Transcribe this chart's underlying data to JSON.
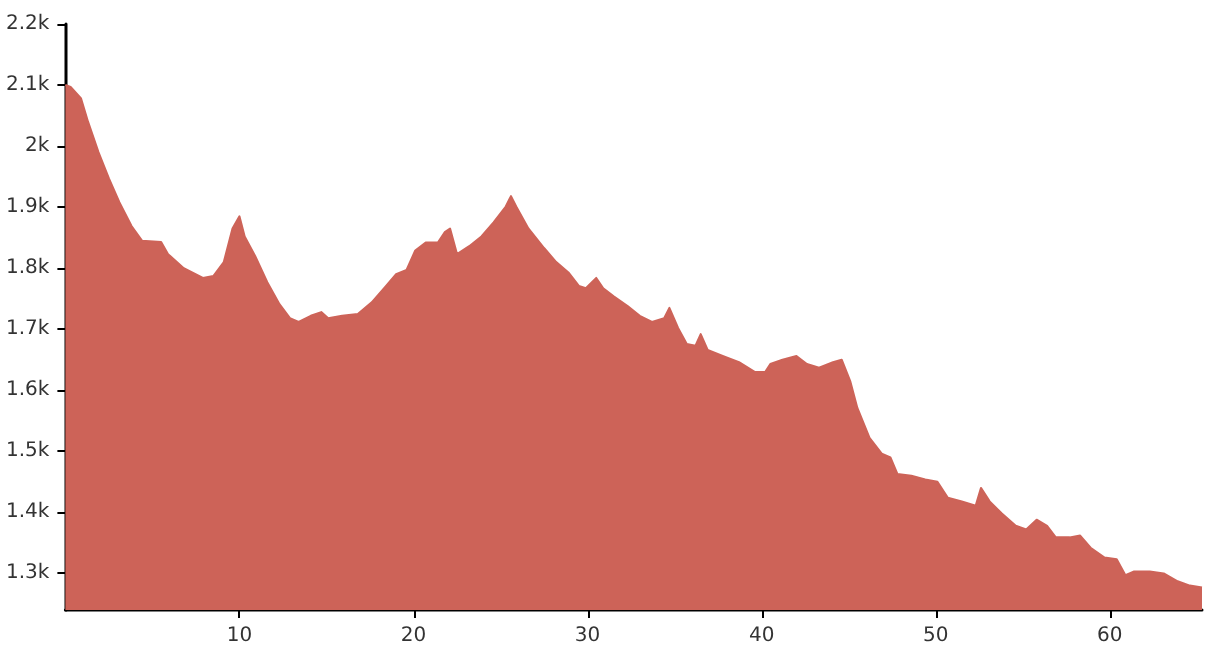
{
  "chart_data": {
    "type": "area",
    "xlim": [
      0,
      65.3
    ],
    "ylim": [
      1240,
      2200
    ],
    "xticks": [
      10,
      20,
      30,
      40,
      50,
      60
    ],
    "yticks": [
      {
        "value": 1300,
        "label": "1.3k"
      },
      {
        "value": 1400,
        "label": "1.4k"
      },
      {
        "value": 1500,
        "label": "1.5k"
      },
      {
        "value": 1600,
        "label": "1.6k"
      },
      {
        "value": 1700,
        "label": "1.7k"
      },
      {
        "value": 1800,
        "label": "1.8k"
      },
      {
        "value": 1900,
        "label": "1.9k"
      },
      {
        "value": 2000,
        "label": "2k"
      },
      {
        "value": 2100,
        "label": "2.1k"
      },
      {
        "value": 2200,
        "label": "2.2k"
      }
    ],
    "grid": false,
    "marker": "none",
    "series": [
      {
        "color": "#cd6358",
        "x": [
          0,
          0.3,
          0.9,
          1.3,
          1.9,
          2.5,
          3.1,
          3.8,
          4.4,
          5.5,
          5.9,
          6.8,
          7.9,
          8.5,
          9.1,
          9.6,
          10,
          10.3,
          10.9,
          11.6,
          12.3,
          12.9,
          13.4,
          14.1,
          14.7,
          15.1,
          15.9,
          16.8,
          17.6,
          18.4,
          19,
          19.6,
          20.1,
          20.7,
          21.4,
          21.8,
          22.1,
          22.5,
          23.2,
          23.9,
          24.6,
          25.3,
          25.6,
          25.9,
          26.6,
          27.5,
          28.2,
          28.9,
          29.5,
          29.9,
          30.5,
          30.9,
          31.5,
          32.3,
          33,
          33.7,
          34.4,
          34.7,
          35.2,
          35.7,
          36.2,
          36.5,
          36.9,
          37.8,
          38.7,
          39.6,
          40.2,
          40.5,
          41.2,
          42,
          42.6,
          43.3,
          44.1,
          44.6,
          45.1,
          45.5,
          46.2,
          46.9,
          47.4,
          47.8,
          48.6,
          49.4,
          50.1,
          50.7,
          51.5,
          52.3,
          52.6,
          53.1,
          53.8,
          54.6,
          55.2,
          55.8,
          56.4,
          56.9,
          57.7,
          58.3,
          58.9,
          59.7,
          60.4,
          60.9,
          61.4,
          62.3,
          63.1,
          63.9,
          64.6,
          65.3
        ],
        "values": [
          2100,
          2097,
          2078,
          2040,
          1990,
          1947,
          1908,
          1869,
          1845,
          1843,
          1823,
          1800,
          1784,
          1787,
          1810,
          1865,
          1885,
          1852,
          1820,
          1777,
          1741,
          1718,
          1712,
          1722,
          1728,
          1718,
          1722,
          1725,
          1744,
          1770,
          1790,
          1797,
          1829,
          1842,
          1842,
          1859,
          1865,
          1823,
          1836,
          1852,
          1875,
          1901,
          1918,
          1901,
          1865,
          1833,
          1810,
          1793,
          1771,
          1767,
          1784,
          1767,
          1754,
          1738,
          1722,
          1712,
          1718,
          1735,
          1702,
          1676,
          1673,
          1692,
          1666,
          1656,
          1646,
          1630,
          1630,
          1643,
          1650,
          1656,
          1643,
          1637,
          1646,
          1650,
          1614,
          1571,
          1522,
          1496,
          1490,
          1463,
          1460,
          1454,
          1450,
          1424,
          1418,
          1411,
          1440,
          1418,
          1398,
          1378,
          1372,
          1388,
          1378,
          1359,
          1359,
          1362,
          1342,
          1326,
          1323,
          1297,
          1303,
          1303,
          1300,
          1287,
          1280,
          1277
        ]
      }
    ]
  }
}
